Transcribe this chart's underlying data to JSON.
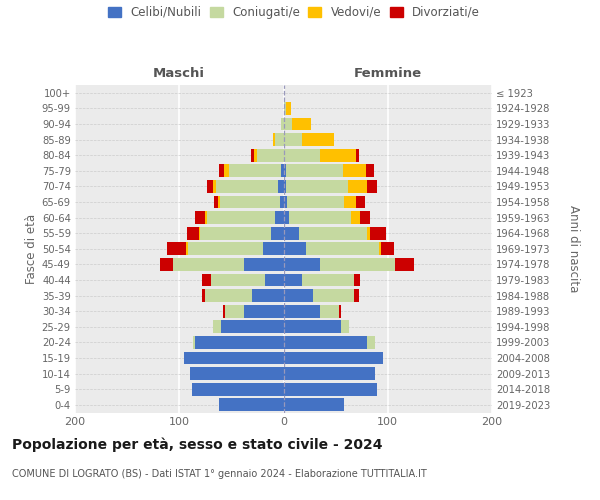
{
  "age_groups": [
    "0-4",
    "5-9",
    "10-14",
    "15-19",
    "20-24",
    "25-29",
    "30-34",
    "35-39",
    "40-44",
    "45-49",
    "50-54",
    "55-59",
    "60-64",
    "65-69",
    "70-74",
    "75-79",
    "80-84",
    "85-89",
    "90-94",
    "95-99",
    "100+"
  ],
  "birth_years": [
    "2019-2023",
    "2014-2018",
    "2009-2013",
    "2004-2008",
    "1999-2003",
    "1994-1998",
    "1989-1993",
    "1984-1988",
    "1979-1983",
    "1974-1978",
    "1969-1973",
    "1964-1968",
    "1959-1963",
    "1954-1958",
    "1949-1953",
    "1944-1948",
    "1939-1943",
    "1934-1938",
    "1929-1933",
    "1924-1928",
    "≤ 1923"
  ],
  "male_celibi": [
    62,
    88,
    90,
    95,
    85,
    60,
    38,
    30,
    18,
    38,
    20,
    12,
    8,
    3,
    5,
    2,
    0,
    0,
    0,
    0,
    0
  ],
  "male_coniugati": [
    0,
    0,
    0,
    0,
    2,
    8,
    18,
    45,
    52,
    68,
    72,
    68,
    65,
    58,
    60,
    50,
    25,
    8,
    2,
    0,
    0
  ],
  "male_vedovi": [
    0,
    0,
    0,
    0,
    0,
    0,
    0,
    0,
    0,
    0,
    2,
    1,
    2,
    2,
    3,
    5,
    3,
    2,
    0,
    0,
    0
  ],
  "male_divorziati": [
    0,
    0,
    0,
    0,
    0,
    0,
    2,
    3,
    8,
    12,
    18,
    12,
    10,
    4,
    5,
    5,
    3,
    0,
    0,
    0,
    0
  ],
  "fem_nubili": [
    58,
    90,
    88,
    95,
    80,
    55,
    35,
    28,
    18,
    35,
    22,
    15,
    5,
    3,
    2,
    2,
    0,
    0,
    0,
    0,
    0
  ],
  "fem_coniugate": [
    0,
    0,
    0,
    0,
    8,
    8,
    18,
    40,
    50,
    72,
    70,
    65,
    60,
    55,
    60,
    55,
    35,
    18,
    8,
    2,
    0
  ],
  "fem_vedove": [
    0,
    0,
    0,
    0,
    0,
    0,
    0,
    0,
    0,
    0,
    2,
    3,
    8,
    12,
    18,
    22,
    35,
    30,
    18,
    5,
    0
  ],
  "fem_divorziate": [
    0,
    0,
    0,
    0,
    0,
    0,
    2,
    4,
    5,
    18,
    12,
    15,
    10,
    8,
    10,
    8,
    2,
    0,
    0,
    0,
    0
  ],
  "colors_celibi": "#4472c4",
  "colors_coniugati": "#c5d9a0",
  "colors_vedovi": "#ffc000",
  "colors_divorziati": "#cc0000",
  "xlim": 200,
  "title": "Popolazione per età, sesso e stato civile - 2024",
  "subtitle": "COMUNE DI LOGRATO (BS) - Dati ISTAT 1° gennaio 2024 - Elaborazione TUTTITALIA.IT",
  "ylabel_left": "Fasce di età",
  "ylabel_right": "Anni di nascita",
  "label_maschi": "Maschi",
  "label_femmine": "Femmine",
  "legend_labels": [
    "Celibi/Nubili",
    "Coniugati/e",
    "Vedovi/e",
    "Divorziati/e"
  ],
  "bg_color": "#ffffff",
  "plot_bg": "#ebebeb"
}
